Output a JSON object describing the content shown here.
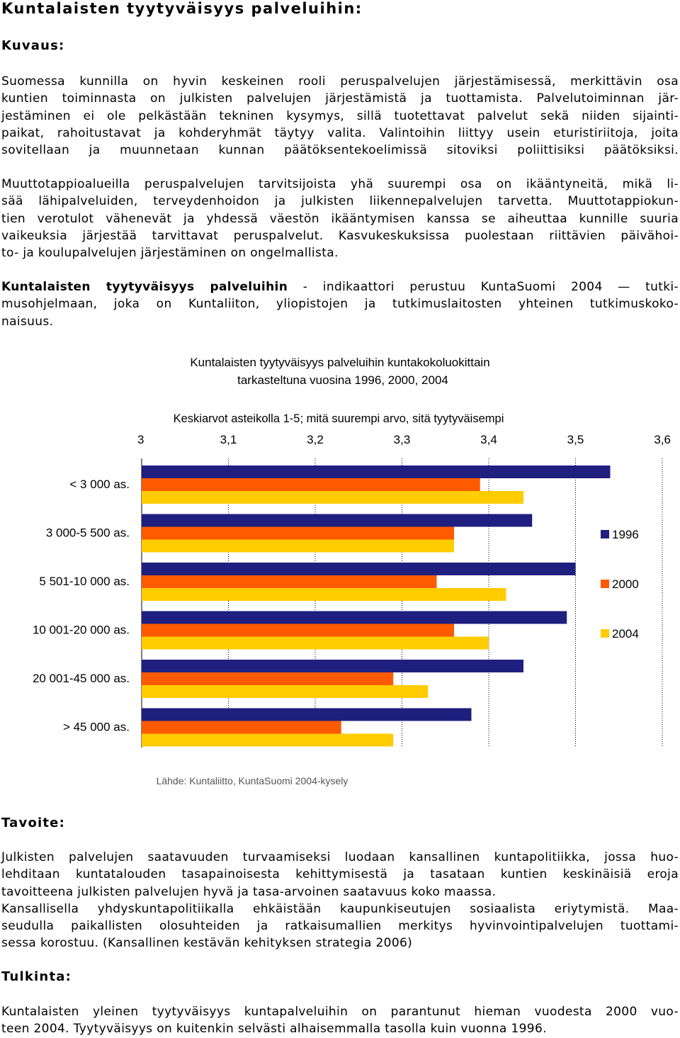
{
  "title": "Kuntalaisten tyytyväisyys palveluihin:",
  "kuvaus": {
    "heading": "Kuvaus:",
    "p1": [
      "Suomessa kunnilla on hyvin keskeinen rooli peruspalvelujen järjestämisessä, merkittävin osa",
      "kuntien toiminnasta on julkisten palvelujen järjestämistä ja tuottamista. Palvelutoiminnan jär-",
      "jestäminen ei ole pelkästään tekninen kysymys, sillä tuotettavat palvelut sekä niiden sijainti-",
      "paikat, rahoitustavat ja kohderyhmät täytyy valita. Valintoihin liittyy usein eturistiriitoja, joita",
      "sovitellaan ja muunnetaan kunnan päätöksentekoelimissä sitoviksi poliittisiksi päätöksiksi."
    ],
    "p2": [
      "Muuttotappioalueilla peruspalvelujen tarvitsijoista yhä suurempi osa on ikääntyneitä, mikä li-",
      "sää lähipalveluiden, terveydenhoidon ja julkisten liikennepalvelujen tarvetta. Muuttotappiokun-",
      "tien verotulot vähenevät ja yhdessä väestön ikääntymisen kanssa se aiheuttaa kunnille suuria",
      "vaikeuksia järjestää tarvittavat peruspalvelut. Kasvukeskuksissa puolestaan riittävien päivähoi-",
      "to- ja koulupalvelujen järjestäminen on ongelmallista."
    ],
    "p3_bold": "Kuntalaisten tyytyväisyys palveluihin",
    "p3": [
      " - indikaattori perustuu KuntaSuomi 2004 — tutki-",
      "musohjelmaan, joka on Kuntaliiton, yliopistojen ja tutkimuslaitosten yhteinen tutkimuskoko-",
      "naisuus."
    ]
  },
  "chart_data": {
    "type": "bar",
    "orientation": "horizontal",
    "title": "Kuntalaisten tyytyväisyys palveluihin kuntakokoluokittain",
    "subtitle": "tarkasteltuna vuosina 1996, 2000, 2004",
    "xlabel": "Keskiarvot asteikolla 1-5; mitä suurempi arvo, sitä tyytyväisempi",
    "xlim": [
      3,
      3.6
    ],
    "ticks": [
      "3",
      "3,1",
      "3,2",
      "3,3",
      "3,4",
      "3,5",
      "3,6"
    ],
    "tick_values": [
      3,
      3.1,
      3.2,
      3.3,
      3.4,
      3.5,
      3.6
    ],
    "categories": [
      "< 3 000 as.",
      "3 000-5 500 as.",
      "5 501-10 000 as.",
      "10 001-20 000 as.",
      "20 001-45 000 as.",
      "> 45 000 as."
    ],
    "series": [
      {
        "name": "1996",
        "color": "#1f1f7f",
        "values": [
          3.54,
          3.45,
          3.5,
          3.49,
          3.44,
          3.38
        ]
      },
      {
        "name": "2000",
        "color": "#ff5a00",
        "values": [
          3.39,
          3.36,
          3.34,
          3.36,
          3.29,
          3.23
        ]
      },
      {
        "name": "2004",
        "color": "#ffcc00",
        "values": [
          3.44,
          3.36,
          3.42,
          3.4,
          3.33,
          3.29
        ]
      }
    ],
    "grid": "vertical gridlines at ticks",
    "legend_position": "right",
    "source": "Lähde: Kuntaliitto, KuntaSuomi 2004-kysely"
  },
  "tavoite": {
    "heading": "Tavoite:",
    "lines": [
      "Julkisten palvelujen saatavuuden turvaamiseksi luodaan kansallinen kuntapolitiikka, jossa huo-",
      "lehditaan kuntatalouden tasapainoisesta kehittymisestä ja tasataan kuntien keskinäisiä eroja",
      "tavoitteena julkisten palvelujen hyvä ja tasa-arvoinen saatavuus koko maassa.",
      "Kansallisella yhdyskuntapolitiikalla ehkäistään kaupunkiseutujen sosiaalista eriytymistä. Maa-",
      "seudulla paikallisten olosuhteiden ja ratkaisumallien merkitys hyvinvointipalvelujen tuottami-",
      "sessa korostuu. (Kansallinen kestävän kehityksen strategia 2006)"
    ]
  },
  "tulkinta": {
    "heading": "Tulkinta:",
    "lines": [
      "Kuntalaisten yleinen tyytyväisyys kuntapalveluihin on parantunut hieman vuodesta 2000 vuo-",
      "teen 2004. Tyytyväisyys on kuitenkin selvästi alhaisemmalla tasolla kuin vuonna 1996."
    ]
  }
}
